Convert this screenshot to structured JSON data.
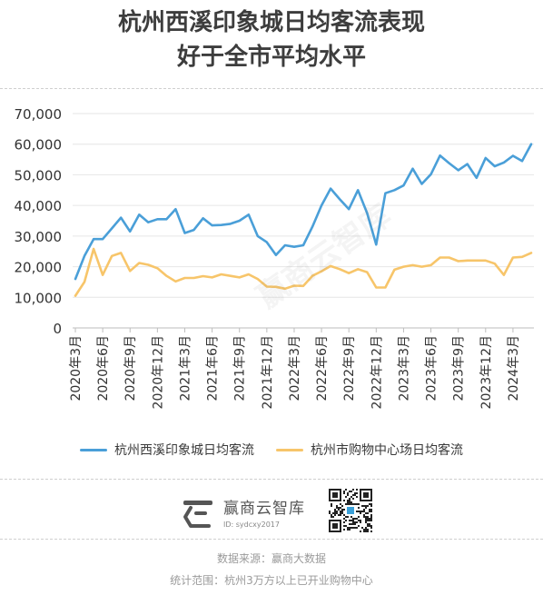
{
  "title_lines": [
    "杭州西溪印象城日均客流表现",
    "好于全市平均水平"
  ],
  "chart_data": {
    "type": "line",
    "x": [
      "2020年3月",
      "2020年4月",
      "2020年5月",
      "2020年6月",
      "2020年7月",
      "2020年8月",
      "2020年9月",
      "2020年10月",
      "2020年11月",
      "2020年12月",
      "2021年1月",
      "2021年2月",
      "2021年3月",
      "2021年4月",
      "2021年5月",
      "2021年6月",
      "2021年7月",
      "2021年8月",
      "2021年9月",
      "2021年10月",
      "2021年11月",
      "2021年12月",
      "2022年1月",
      "2022年2月",
      "2022年3月",
      "2022年4月",
      "2022年5月",
      "2022年6月",
      "2022年7月",
      "2022年8月",
      "2022年9月",
      "2022年10月",
      "2022年11月",
      "2022年12月",
      "2023年1月",
      "2023年2月",
      "2023年3月",
      "2023年4月",
      "2023年5月",
      "2023年6月",
      "2023年7月",
      "2023年8月",
      "2023年9月",
      "2023年10月",
      "2023年11月",
      "2023年12月",
      "2024年1月",
      "2024年2月",
      "2024年3月",
      "2024年4月",
      "2024年5月"
    ],
    "x_tick_labels": [
      "2020年3月",
      "2020年6月",
      "2020年9月",
      "2020年12月",
      "2021年3月",
      "2021年6月",
      "2021年9月",
      "2021年12月",
      "2022年3月",
      "2022年6月",
      "2022年9月",
      "2022年12月",
      "2023年3月",
      "2023年6月",
      "2023年9月",
      "2023年12月",
      "2024年3月"
    ],
    "x_tick_indices": [
      0,
      3,
      6,
      9,
      12,
      15,
      18,
      21,
      24,
      27,
      30,
      33,
      36,
      39,
      42,
      45,
      48
    ],
    "ylim": [
      0,
      70000
    ],
    "y_ticks": [
      0,
      10000,
      20000,
      30000,
      40000,
      50000,
      60000,
      70000
    ],
    "y_tick_labels": [
      "0",
      "10,000",
      "20,000",
      "30,000",
      "40,000",
      "50,000",
      "60,000",
      "70,000"
    ],
    "grid": "horizontal",
    "legend_position": "bottom",
    "series": [
      {
        "name": "杭州西溪印象城日均客流",
        "color": "#4a9fd8",
        "values": [
          16000,
          23500,
          29000,
          29000,
          32500,
          36000,
          31500,
          37000,
          34500,
          35500,
          35500,
          38800,
          31000,
          32000,
          35800,
          33500,
          33600,
          34000,
          35000,
          37000,
          30000,
          28000,
          23800,
          27000,
          26500,
          27000,
          33000,
          40000,
          45500,
          42000,
          38800,
          45000,
          37500,
          27200,
          44000,
          45000,
          46500,
          52000,
          47000,
          50200,
          56300,
          53800,
          51500,
          53500,
          49000,
          55500,
          52800,
          54000,
          56200,
          54500,
          60000
        ]
      },
      {
        "name": "杭州市购物中心场日均客流",
        "color": "#f7c56a",
        "values": [
          10500,
          15000,
          25800,
          17300,
          23500,
          24500,
          18600,
          21200,
          20600,
          19500,
          17000,
          15200,
          16300,
          16300,
          16900,
          16500,
          17500,
          17000,
          16500,
          17500,
          16000,
          13500,
          13400,
          12800,
          13800,
          13700,
          17000,
          18500,
          20200,
          19200,
          17900,
          19200,
          18200,
          13200,
          13200,
          19000,
          20000,
          20500,
          20000,
          20500,
          23000,
          23000,
          21800,
          22000,
          22000,
          22000,
          21000,
          17300,
          23000,
          23200,
          24500
        ]
      }
    ]
  },
  "brand": {
    "name": "赢商云智库",
    "id_text": "ID: sydcxy2017",
    "watermark": "赢商云智库"
  },
  "footer": {
    "source": "数据来源：赢商大数据",
    "scope": "统计范围：杭州3万方以上已开业购物中心"
  }
}
